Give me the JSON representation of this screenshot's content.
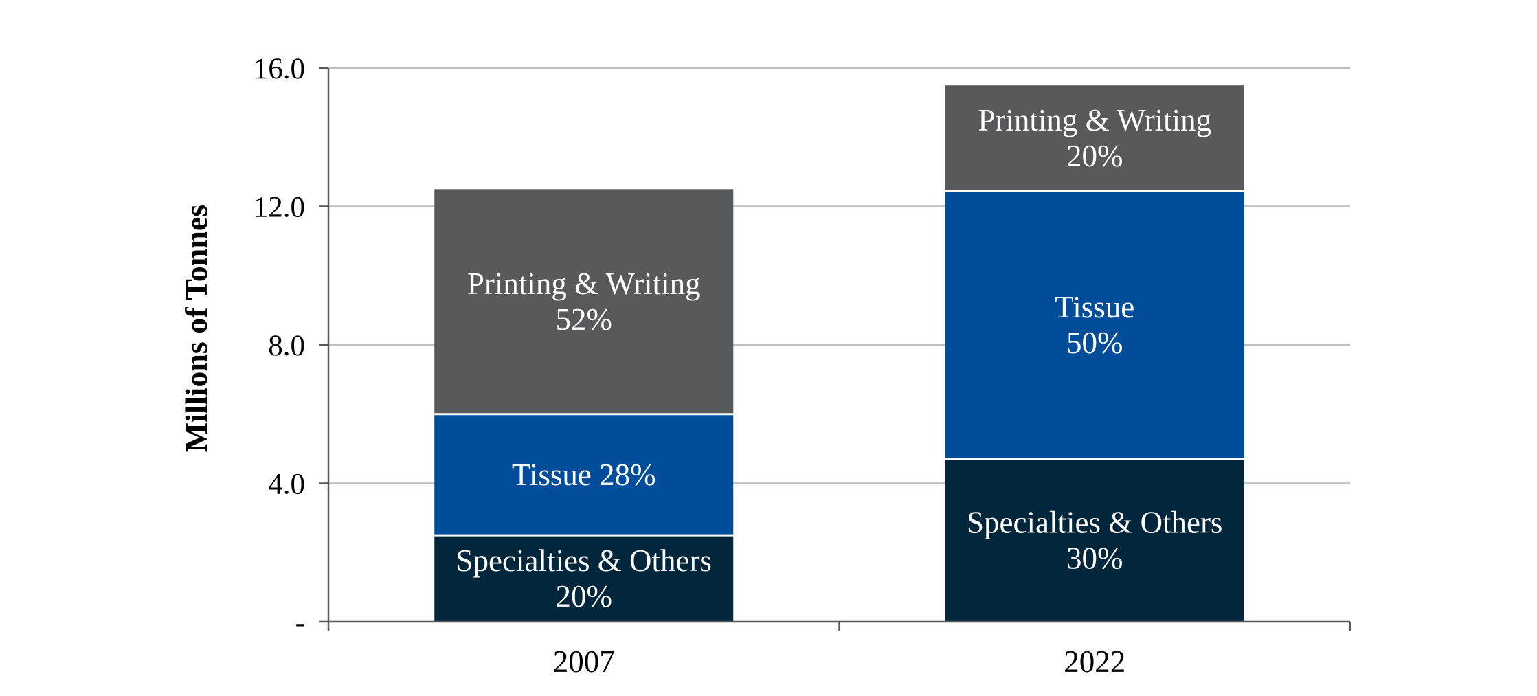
{
  "chart_data": {
    "type": "bar",
    "stacked": true,
    "categories": [
      "2007",
      "2022"
    ],
    "ylabel": "Millions of Tonnes",
    "xlabel": "",
    "ylim": [
      0,
      16
    ],
    "yticks": [
      {
        "value": 0,
        "label": "-"
      },
      {
        "value": 4,
        "label": "4.0"
      },
      {
        "value": 8,
        "label": "8.0"
      },
      {
        "value": 12,
        "label": "12.0"
      },
      {
        "value": 16,
        "label": "16.0"
      }
    ],
    "grid": true,
    "legend": "none",
    "series": [
      {
        "name": "Specialties & Others",
        "color": "#02263C",
        "values": [
          2.5,
          4.7
        ],
        "labels": [
          [
            "Specialties & Others",
            "20%"
          ],
          [
            "Specialties & Others",
            "30%"
          ]
        ]
      },
      {
        "name": "Tissue",
        "color": "#024D9A",
        "values": [
          3.5,
          7.75
        ],
        "labels": [
          [
            "Tissue 28%"
          ],
          [
            "Tissue",
            "50%"
          ]
        ]
      },
      {
        "name": "Printing & Writing",
        "color": "#58595B",
        "values": [
          6.5,
          3.05
        ],
        "labels": [
          [
            "Printing & Writing",
            "52%"
          ],
          [
            "Printing & Writing",
            "20%"
          ]
        ]
      }
    ]
  }
}
